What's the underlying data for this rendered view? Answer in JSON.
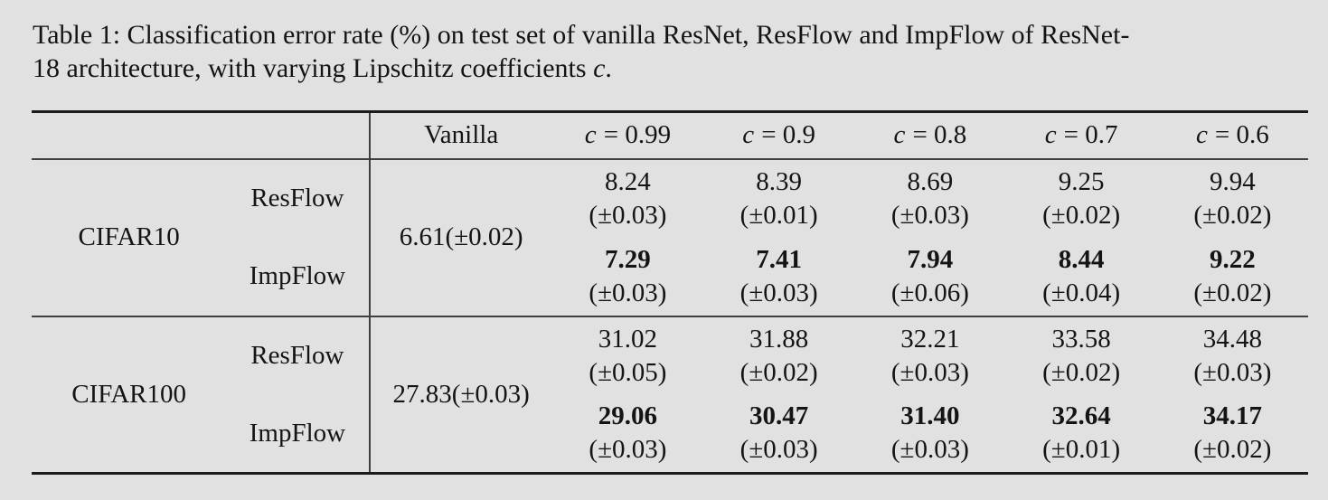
{
  "colors": {
    "background": "#e1e1e1",
    "text": "#141414",
    "rule_heavy": "#1b1b1b",
    "rule_light": "#3f3f3f"
  },
  "caption": {
    "line1": "Table 1: Classification error rate (%) on test set of vanilla ResNet, ResFlow and ImpFlow of ResNet-",
    "line2_text": "18 architecture, with varying Lipschitz coefficients ",
    "line2_math": "c",
    "line2_end": "."
  },
  "table": {
    "header": {
      "vanilla": "Vanilla",
      "coefficients": [
        {
          "var": "c",
          "eq": "= 0.99"
        },
        {
          "var": "c",
          "eq": "= 0.9"
        },
        {
          "var": "c",
          "eq": "= 0.8"
        },
        {
          "var": "c",
          "eq": "= 0.7"
        },
        {
          "var": "c",
          "eq": "= 0.6"
        }
      ]
    },
    "blocks": [
      {
        "dataset": "CIFAR10",
        "vanilla": "6.61(±0.02)",
        "rows": [
          {
            "model": "ResFlow",
            "cells": [
              {
                "value": "8.24",
                "err": "(±0.03)"
              },
              {
                "value": "8.39",
                "err": "(±0.01)"
              },
              {
                "value": "8.69",
                "err": "(±0.03)"
              },
              {
                "value": "9.25",
                "err": "(±0.02)"
              },
              {
                "value": "9.94",
                "err": "(±0.02)"
              }
            ]
          },
          {
            "model": "ImpFlow",
            "cells": [
              {
                "value": "7.29",
                "err": "(±0.03)"
              },
              {
                "value": "7.41",
                "err": "(±0.03)"
              },
              {
                "value": "7.94",
                "err": "(±0.06)"
              },
              {
                "value": "8.44",
                "err": "(±0.04)"
              },
              {
                "value": "9.22",
                "err": "(±0.02)"
              }
            ]
          }
        ]
      },
      {
        "dataset": "CIFAR100",
        "vanilla": "27.83(±0.03)",
        "rows": [
          {
            "model": "ResFlow",
            "cells": [
              {
                "value": "31.02",
                "err": "(±0.05)"
              },
              {
                "value": "31.88",
                "err": "(±0.02)"
              },
              {
                "value": "32.21",
                "err": "(±0.03)"
              },
              {
                "value": "33.58",
                "err": "(±0.02)"
              },
              {
                "value": "34.48",
                "err": "(±0.03)"
              }
            ]
          },
          {
            "model": "ImpFlow",
            "cells": [
              {
                "value": "29.06",
                "err": "(±0.03)"
              },
              {
                "value": "30.47",
                "err": "(±0.03)"
              },
              {
                "value": "31.40",
                "err": "(±0.03)"
              },
              {
                "value": "32.64",
                "err": "(±0.01)"
              },
              {
                "value": "34.17",
                "err": "(±0.02)"
              }
            ]
          }
        ]
      }
    ]
  }
}
